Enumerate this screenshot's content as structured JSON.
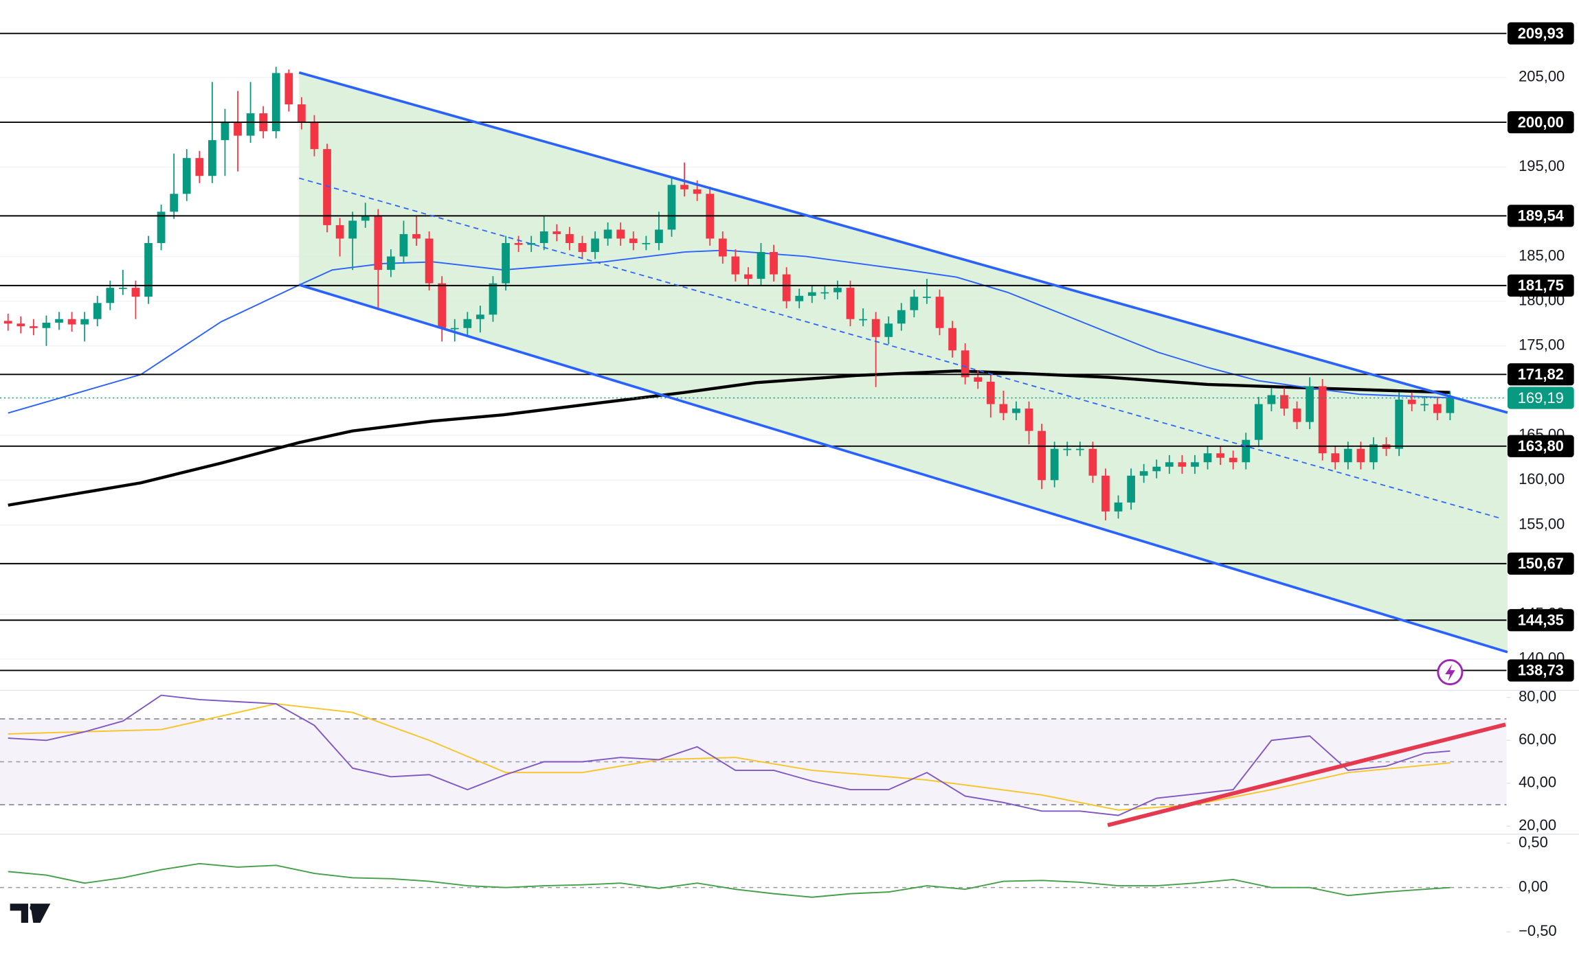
{
  "chart_data": [
    {
      "type": "candlestick",
      "ylim": [
        136.62,
        213.66
      ],
      "yticks": [
        {
          "value": 205,
          "label": "205,00"
        },
        {
          "value": 195,
          "label": "195,00"
        },
        {
          "value": 185,
          "label": "185,00"
        },
        {
          "value": 180,
          "label": "180,00"
        },
        {
          "value": 175,
          "label": "175,00"
        },
        {
          "value": 165,
          "label": "165,00"
        },
        {
          "value": 160,
          "label": "160,00"
        },
        {
          "value": 155,
          "label": "155,00"
        },
        {
          "value": 145,
          "label": "145,00"
        },
        {
          "value": 140,
          "label": "140,00"
        }
      ],
      "grid": true,
      "up_color": "#089981",
      "down_color": "#f23645",
      "levels": [
        {
          "value": 209.93,
          "label": "209,93"
        },
        {
          "value": 200,
          "label": "200,00"
        },
        {
          "value": 189.54,
          "label": "189,54"
        },
        {
          "value": 181.75,
          "label": "181,75"
        },
        {
          "value": 171.82,
          "label": "171,82"
        },
        {
          "value": 163.8,
          "label": "163,80"
        },
        {
          "value": 150.67,
          "label": "150,67"
        },
        {
          "value": 144.35,
          "label": "144,35"
        },
        {
          "value": 138.73,
          "label": "138,73"
        }
      ],
      "last_price": {
        "value": 169.19,
        "label": "169,19",
        "color": "#089981"
      },
      "candles": {
        "open": [
          177.8,
          177.5,
          177.2,
          177.0,
          177.6,
          178.0,
          177.4,
          178.0,
          179.8,
          181.5,
          181.5,
          180.5,
          186.5,
          190.0,
          192.0,
          196.0,
          194.0,
          198.0,
          200.0,
          198.5,
          201.0,
          199.0,
          205.5,
          202.0,
          200.0,
          197.0,
          188.5,
          187.0,
          189.0,
          189.5,
          183.5,
          185.0,
          187.5,
          187.0,
          182.0,
          177.0,
          177.0,
          178.0,
          178.5,
          182.0,
          186.5,
          186.3,
          186.5,
          187.8,
          187.5,
          186.5,
          185.5,
          187.0,
          188.0,
          187.0,
          186.5,
          186.5,
          188.0,
          193.0,
          192.5,
          192.0,
          187.0,
          185.0,
          183.0,
          182.5,
          185.5,
          183.0,
          180.0,
          180.6,
          181.0,
          181.0,
          181.5,
          178.0,
          178.0,
          176.0,
          177.5,
          179.0,
          180.5,
          180.5,
          177.0,
          174.5,
          171.5,
          171.0,
          168.5,
          167.5,
          168.0,
          165.5,
          160.0,
          163.5,
          163.5,
          163.5,
          160.5,
          156.5,
          157.5,
          160.5,
          161.0,
          161.5,
          162.0,
          161.5,
          162.0,
          163.0,
          162.5,
          162.0,
          164.5,
          168.5,
          169.5,
          168.0,
          166.5,
          170.5,
          163.0,
          162.0,
          163.5,
          162.0,
          164.0,
          163.5,
          169.0,
          168.5,
          168.5,
          167.5
        ],
        "high": [
          178.6,
          178.3,
          178.0,
          178.4,
          178.8,
          178.8,
          178.8,
          180.6,
          182.3,
          183.5,
          182.3,
          187.3,
          190.8,
          196.5,
          197.0,
          196.8,
          204.5,
          201.5,
          203.5,
          204.5,
          201.8,
          206.2,
          205.9,
          202.8,
          200.8,
          197.6,
          189.3,
          190.0,
          191.0,
          190.3,
          185.8,
          189.0,
          189.5,
          187.8,
          182.8,
          178.0,
          178.8,
          179.5,
          182.8,
          187.3,
          187.3,
          187.3,
          189.5,
          188.6,
          188.3,
          187.3,
          187.8,
          188.8,
          188.8,
          187.8,
          187.3,
          190.0,
          193.8,
          195.5,
          193.5,
          192.8,
          187.8,
          185.8,
          183.8,
          186.5,
          186.3,
          183.8,
          181.4,
          181.8,
          181.8,
          182.3,
          182.3,
          179.2,
          178.8,
          178.3,
          179.8,
          181.3,
          182.5,
          181.3,
          177.8,
          175.3,
          172.3,
          171.8,
          170.0,
          168.8,
          168.8,
          166.3,
          164.3,
          164.3,
          164.3,
          164.3,
          161.3,
          158.3,
          161.3,
          161.8,
          162.3,
          162.8,
          162.8,
          162.8,
          163.8,
          163.8,
          163.3,
          165.3,
          169.3,
          170.3,
          170.3,
          168.8,
          171.5,
          171.3,
          163.8,
          164.3,
          164.3,
          164.8,
          164.8,
          169.8,
          169.8,
          169.3,
          169.3,
          169.9
        ],
        "low": [
          176.7,
          176.4,
          176.2,
          175.0,
          176.8,
          176.6,
          175.5,
          177.2,
          179.0,
          180.7,
          178.0,
          179.7,
          185.7,
          189.2,
          191.2,
          193.2,
          193.2,
          194.0,
          194.5,
          197.7,
          198.2,
          198.2,
          201.2,
          199.2,
          196.2,
          187.7,
          185.0,
          183.5,
          188.2,
          179.0,
          182.7,
          184.2,
          186.2,
          181.2,
          175.5,
          175.5,
          176.2,
          176.5,
          177.7,
          181.2,
          185.5,
          185.5,
          185.7,
          186.7,
          185.7,
          184.7,
          184.7,
          186.2,
          186.2,
          185.7,
          185.7,
          185.7,
          187.2,
          191.7,
          191.2,
          186.2,
          184.2,
          182.2,
          181.7,
          181.7,
          182.2,
          179.2,
          179.2,
          179.8,
          180.2,
          180.2,
          177.2,
          177.2,
          170.4,
          175.2,
          176.7,
          178.2,
          179.7,
          176.2,
          173.7,
          170.7,
          170.2,
          167.0,
          166.7,
          166.7,
          164.0,
          159.0,
          159.2,
          162.7,
          162.7,
          159.7,
          155.5,
          155.7,
          156.7,
          159.7,
          160.2,
          160.7,
          160.7,
          160.7,
          161.2,
          161.7,
          161.2,
          161.2,
          163.7,
          167.7,
          167.2,
          165.7,
          165.7,
          162.2,
          161.2,
          161.2,
          161.2,
          161.2,
          162.7,
          162.7,
          167.7,
          167.7,
          166.7,
          166.7
        ],
        "close": [
          177.5,
          177.2,
          177.0,
          177.6,
          178.0,
          177.4,
          178.0,
          179.8,
          181.5,
          181.5,
          180.5,
          186.5,
          190.0,
          192.0,
          196.0,
          194.0,
          198.0,
          200.0,
          198.5,
          201.0,
          199.0,
          205.5,
          202.0,
          200.0,
          197.0,
          188.5,
          187.0,
          189.0,
          189.5,
          183.5,
          185.0,
          187.5,
          187.0,
          182.0,
          177.0,
          177.0,
          178.0,
          178.5,
          182.0,
          186.5,
          186.3,
          186.5,
          187.8,
          187.5,
          186.5,
          185.5,
          187.0,
          188.0,
          187.0,
          186.5,
          186.5,
          188.0,
          193.0,
          192.5,
          192.0,
          187.0,
          185.0,
          183.0,
          182.5,
          185.5,
          183.0,
          180.0,
          180.6,
          181.0,
          181.0,
          181.5,
          178.0,
          178.0,
          176.0,
          177.5,
          179.0,
          180.5,
          180.5,
          177.0,
          174.5,
          171.5,
          171.0,
          168.5,
          167.5,
          168.0,
          165.5,
          160.0,
          163.5,
          163.5,
          163.5,
          160.5,
          156.5,
          157.5,
          160.5,
          161.0,
          161.5,
          162.0,
          161.5,
          162.0,
          163.0,
          162.5,
          162.0,
          164.5,
          168.5,
          169.5,
          168.0,
          166.5,
          170.5,
          163.0,
          162.0,
          163.5,
          162.0,
          164.0,
          163.5,
          169.0,
          168.5,
          168.5,
          167.5,
          169.19
        ]
      },
      "series": [
        {
          "color": "#2962ff",
          "x": [
            0,
            10.4,
            16.7,
            22.8,
            25.4,
            29.4,
            33.3,
            38.8,
            46.7,
            53,
            56.2,
            62.5,
            70.4,
            74.3,
            78.3,
            82.2,
            86.2,
            90.1,
            94,
            98,
            102,
            105.9,
            113
          ],
          "values": [
            167.5,
            171.8,
            177.7,
            181.8,
            183.5,
            184.2,
            184.4,
            183.5,
            184.4,
            185.5,
            185.7,
            185.0,
            183.5,
            182.7,
            181.0,
            178.8,
            176.5,
            174.3,
            172.6,
            171.1,
            170.3,
            169.6,
            169.2
          ]
        },
        {
          "color": "#000000",
          "x": [
            0,
            10.4,
            16.7,
            22.8,
            27,
            33.3,
            38.8,
            46.7,
            53,
            58.6,
            66.5,
            74.3,
            78.3,
            86.2,
            94,
            102,
            113
          ],
          "values": [
            157.2,
            159.7,
            161.9,
            164.2,
            165.5,
            166.6,
            167.3,
            168.7,
            169.8,
            170.9,
            171.7,
            172.2,
            172.0,
            171.5,
            170.7,
            170.3,
            169.8
          ]
        }
      ]
    },
    {
      "type": "line",
      "ylim": [
        16.7,
        83.3
      ],
      "yticks": [
        {
          "value": 80,
          "label": "80,00"
        },
        {
          "value": 60,
          "label": "60,00"
        },
        {
          "value": 40,
          "label": "40,00"
        },
        {
          "value": 20,
          "label": "20,00"
        }
      ],
      "band": [
        30,
        70
      ],
      "midline": 50,
      "series": [
        {
          "color": "#7e57c2",
          "x": [
            0,
            3,
            6,
            9,
            12,
            15,
            18,
            21,
            24,
            27,
            30,
            33,
            36,
            39,
            42,
            45,
            48,
            51,
            54,
            57,
            60,
            63,
            66,
            69,
            72,
            75,
            78,
            81,
            84,
            87,
            90,
            93,
            96,
            99,
            102,
            105,
            108,
            111,
            113
          ],
          "values": [
            61,
            60,
            64,
            69,
            81,
            79,
            78,
            77,
            67,
            47,
            43,
            44,
            37,
            44,
            50,
            50,
            52,
            51,
            57,
            46,
            46,
            41,
            37,
            37,
            45,
            34,
            31,
            27,
            27,
            25,
            33,
            35,
            37,
            60,
            62,
            46,
            48,
            54,
            55
          ]
        },
        {
          "color": "#f7c525",
          "x": [
            0,
            12,
            21,
            27,
            33,
            39,
            45,
            51,
            57,
            63,
            72,
            81,
            87,
            93,
            99,
            105,
            113
          ],
          "values": [
            63,
            65,
            77,
            73,
            60,
            45,
            45,
            51,
            52,
            46,
            41.5,
            34.5,
            27.5,
            30,
            37,
            45,
            49.5
          ]
        }
      ]
    },
    {
      "type": "line",
      "ylim": [
        -0.625,
        0.59
      ],
      "yticks": [
        {
          "value": 0.5,
          "label": "0,50"
        },
        {
          "value": 0,
          "label": "0,00"
        },
        {
          "value": -0.5,
          "label": "−0,50"
        }
      ],
      "midline": 0,
      "series": [
        {
          "color": "#43a047",
          "x": [
            0,
            3,
            6,
            9,
            12,
            15,
            18,
            21,
            24,
            27,
            30,
            33,
            36,
            39,
            42,
            45,
            48,
            51,
            54,
            57,
            60,
            63,
            66,
            69,
            72,
            75,
            78,
            81,
            84,
            87,
            90,
            93,
            96,
            99,
            102,
            105,
            108,
            111,
            113
          ],
          "values": [
            0.18,
            0.14,
            0.05,
            0.11,
            0.2,
            0.27,
            0.23,
            0.25,
            0.16,
            0.11,
            0.1,
            0.07,
            0.02,
            0,
            0.02,
            0.03,
            0.05,
            -0.01,
            0.05,
            -0.02,
            -0.07,
            -0.11,
            -0.07,
            -0.05,
            0.02,
            -0.02,
            0.07,
            0.08,
            0.06,
            0.02,
            0.02,
            0.05,
            0.09,
            0,
            0,
            -0.09,
            -0.05,
            -0.02,
            0
          ]
        }
      ]
    }
  ]
}
